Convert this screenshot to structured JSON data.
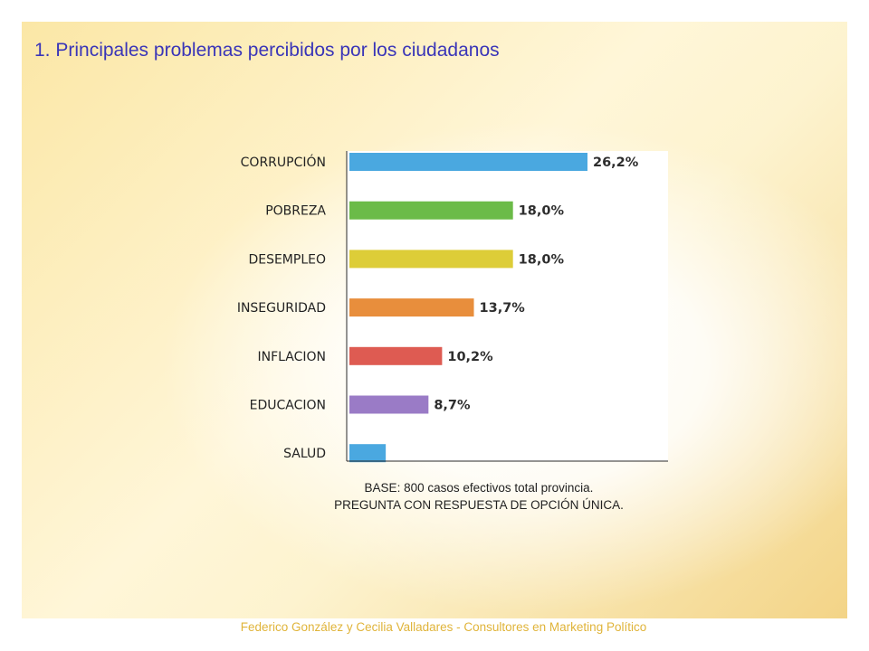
{
  "title": "1. Principales problemas percibidos por los ciudadanos",
  "note": {
    "line1": "BASE: 800 casos efectivos total provincia.",
    "line2": "PREGUNTA CON RESPUESTA DE OPCIÓN ÚNICA."
  },
  "footer": "Federico González y Cecilia Valladares - Consultores en Marketing Político",
  "chart_data": {
    "type": "bar",
    "orientation": "horizontal",
    "categories": [
      "CORRUPCIÓN",
      "POBREZA",
      "DESEMPLEO",
      "INSEGURIDAD",
      "INFLACION",
      "EDUCACION",
      "SALUD"
    ],
    "values": [
      26.2,
      18.0,
      18.0,
      13.7,
      10.2,
      8.7,
      4.0
    ],
    "value_labels": [
      "26,2%",
      "18,0%",
      "18,0%",
      "13,7%",
      "10,2%",
      "8,7%",
      ""
    ],
    "colors": [
      "#4aa8e0",
      "#6bbb48",
      "#ddcd38",
      "#e88e3c",
      "#de5b52",
      "#9a7bc6",
      "#4aa8e0"
    ],
    "xlim": [
      0,
      26.2
    ],
    "grid": false,
    "legend": "none"
  }
}
